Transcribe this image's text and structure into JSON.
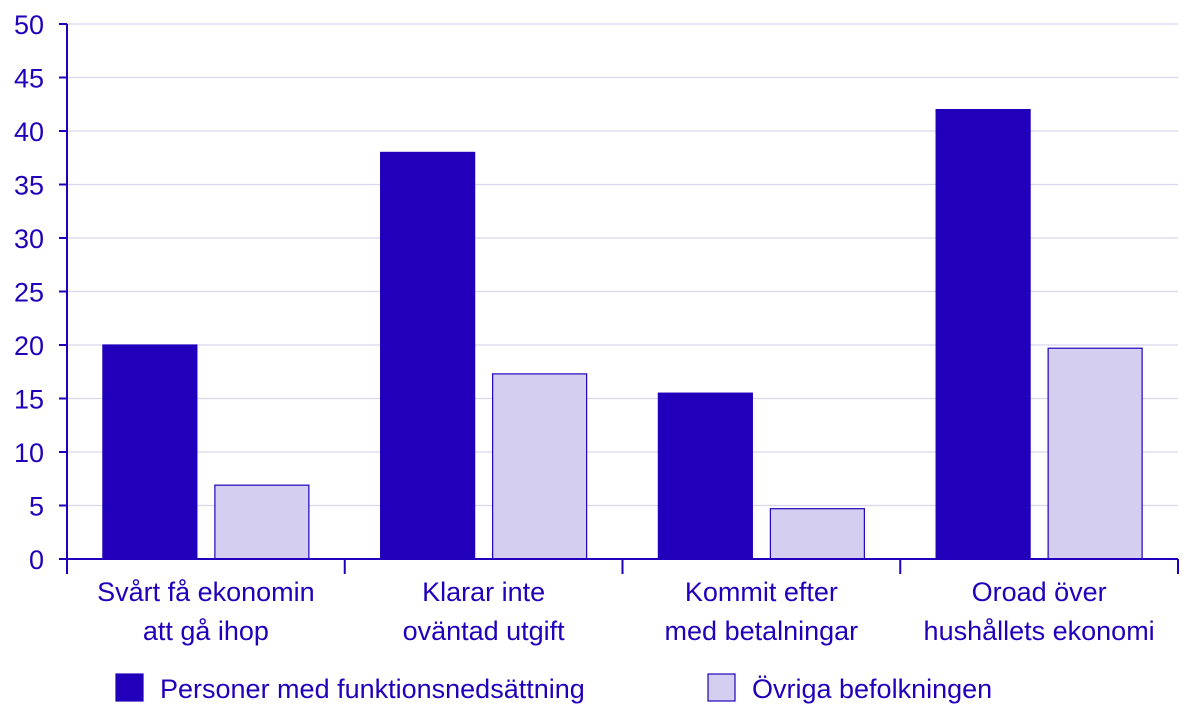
{
  "chart_data": {
    "type": "bar",
    "title": "",
    "xlabel": "",
    "ylabel": "",
    "ylim": [
      0,
      50
    ],
    "yticks": [
      0,
      5,
      10,
      15,
      20,
      25,
      30,
      35,
      40,
      45,
      50
    ],
    "grid": true,
    "legend_position": "bottom",
    "categories": [
      [
        "Svårt få ekonomin",
        "att gå ihop"
      ],
      [
        "Klarar inte",
        "oväntad utgift"
      ],
      [
        "Kommit efter",
        "med betalningar"
      ],
      [
        "Oroad över",
        "hushållets ekonomi"
      ]
    ],
    "series": [
      {
        "name": "Personer med funktionsnedsättning",
        "values": [
          20,
          38,
          15.5,
          42
        ]
      },
      {
        "name": "Övriga befolkningen",
        "values": [
          6.9,
          17.3,
          4.7,
          19.7
        ]
      }
    ]
  },
  "colors": {
    "series_1": "#2200bb",
    "series_2": "#d4cff0",
    "axis": "#2200bb",
    "text": "#2200bb",
    "grid": "#d9d6ef"
  }
}
